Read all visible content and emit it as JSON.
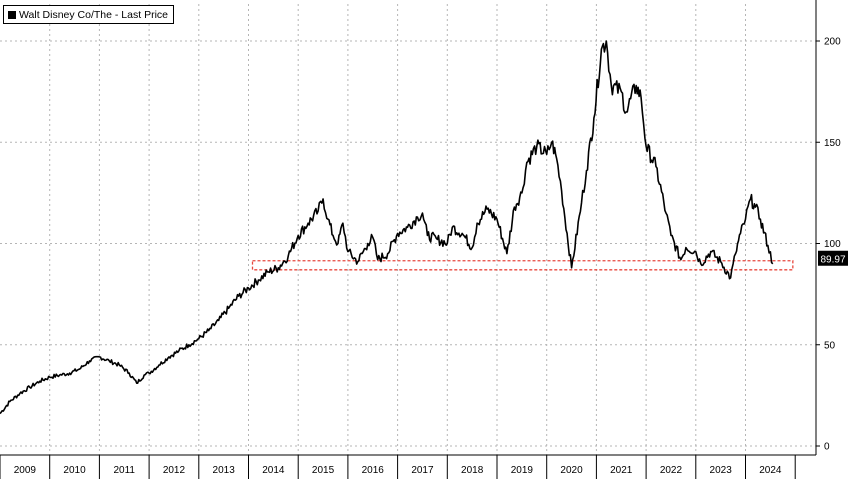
{
  "chart_data": {
    "type": "line",
    "legend": "Walt Disney Co/The - Last Price",
    "legend_position": "top-left",
    "y_axis_side": "right",
    "grid": true,
    "ylim": [
      0,
      215
    ],
    "yticks": [
      0,
      50,
      100,
      150,
      200
    ],
    "x_ticks": [
      "2009",
      "2010",
      "2011",
      "2012",
      "2013",
      "2014",
      "2015",
      "2016",
      "2017",
      "2018",
      "2019",
      "2020",
      "2021",
      "2022",
      "2023",
      "2024"
    ],
    "last_value_label": "89.97",
    "highlight_band": {
      "y_from": 87,
      "y_to": 91.5,
      "color": "#e8483e"
    },
    "series": [
      {
        "color": "#000000",
        "x": [
          2009.0,
          2009.2,
          2009.4,
          2009.6,
          2009.8,
          2010.0,
          2010.2,
          2010.4,
          2010.6,
          2010.8,
          2011.0,
          2011.2,
          2011.4,
          2011.6,
          2011.75,
          2011.9,
          2012.0,
          2012.2,
          2012.4,
          2012.6,
          2012.8,
          2013.0,
          2013.2,
          2013.4,
          2013.6,
          2013.8,
          2014.0,
          2014.2,
          2014.4,
          2014.6,
          2014.8,
          2015.0,
          2015.2,
          2015.4,
          2015.5,
          2015.6,
          2015.7,
          2015.8,
          2015.9,
          2016.0,
          2016.2,
          2016.4,
          2016.5,
          2016.6,
          2016.8,
          2017.0,
          2017.2,
          2017.4,
          2017.5,
          2017.6,
          2017.8,
          2018.0,
          2018.1,
          2018.3,
          2018.5,
          2018.6,
          2018.8,
          2019.0,
          2019.2,
          2019.35,
          2019.5,
          2019.6,
          2019.8,
          2020.0,
          2020.1,
          2020.2,
          2020.3,
          2020.5,
          2020.7,
          2020.8,
          2020.95,
          2021.1,
          2021.2,
          2021.3,
          2021.5,
          2021.6,
          2021.8,
          2021.9,
          2022.0,
          2022.2,
          2022.4,
          2022.5,
          2022.7,
          2022.8,
          2023.0,
          2023.1,
          2023.3,
          2023.5,
          2023.7,
          2023.8,
          2023.9,
          2024.0,
          2024.1,
          2024.2,
          2024.3,
          2024.45,
          2024.55
        ],
        "y": [
          16,
          22,
          26,
          29,
          32,
          34,
          35,
          36,
          38,
          42,
          44,
          42,
          40,
          36,
          31,
          35,
          36,
          40,
          44,
          47,
          50,
          53,
          57,
          62,
          68,
          74,
          78,
          82,
          86,
          88,
          94,
          104,
          110,
          116,
          122,
          112,
          104,
          100,
          110,
          96,
          91,
          100,
          103,
          92,
          95,
          105,
          108,
          113,
          115,
          104,
          102,
          100,
          108,
          105,
          98,
          110,
          117,
          112,
          95,
          118,
          125,
          140,
          148,
          144,
          150,
          142,
          126,
          88,
          120,
          136,
          162,
          196,
          200,
          178,
          175,
          165,
          178,
          172,
          148,
          138,
          115,
          104,
          92,
          98,
          96,
          90,
          96,
          91,
          83,
          95,
          105,
          112,
          122,
          118,
          112,
          99,
          90
        ]
      }
    ]
  }
}
